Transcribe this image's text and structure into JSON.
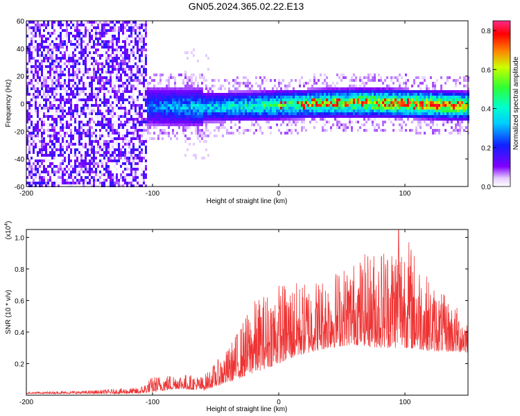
{
  "title": "GN05.2024.365.02.22.E13",
  "colors": {
    "snr_line": "#ee3333",
    "spectrogram_low": "#8000ff",
    "spectrogram_high": "#ff0000"
  },
  "chart_data": [
    {
      "type": "heatmap",
      "xlabel": "Height of straight line (km)",
      "ylabel": "Frequency (Hz)",
      "xlim": [
        -200,
        150
      ],
      "ylim": [
        -60,
        60
      ],
      "xticks": [
        -200,
        -100,
        0,
        100
      ],
      "yticks": [
        -60,
        -40,
        -20,
        0,
        20,
        40,
        60
      ],
      "colorbar": {
        "label": "Normalized spectral amplitude",
        "range": [
          0,
          0.85
        ],
        "ticks": [
          0.0,
          0.2,
          0.4,
          0.6,
          0.8
        ]
      },
      "description_points": {
        "noise_region_x": [
          -200,
          -105
        ],
        "signal_center_y": 0,
        "signal_band_halfwidth_hz": 12
      }
    },
    {
      "type": "line",
      "xlabel": "Height of straight line (km)",
      "ylabel": "SNR (10 * v/v)",
      "y_multiplier": "(x10",
      "y_multiplier_exp": "4",
      "y_multiplier_close": ")",
      "xlim": [
        -200,
        150
      ],
      "ylim": [
        0,
        1.05
      ],
      "xticks": [
        -200,
        -100,
        0,
        100
      ],
      "yticks": [
        0.2,
        0.4,
        0.6,
        0.8,
        1.0
      ],
      "envelope": {
        "x": [
          -200,
          -150,
          -110,
          -100,
          -80,
          -60,
          -40,
          -20,
          0,
          20,
          40,
          60,
          80,
          100,
          120,
          150
        ],
        "baseline": [
          0.01,
          0.01,
          0.01,
          0.02,
          0.04,
          0.03,
          0.08,
          0.14,
          0.2,
          0.26,
          0.3,
          0.32,
          0.3,
          0.3,
          0.28,
          0.27
        ],
        "peak": [
          0.02,
          0.03,
          0.05,
          0.12,
          0.14,
          0.12,
          0.3,
          0.6,
          0.72,
          0.72,
          0.78,
          0.86,
          0.95,
          1.05,
          0.72,
          0.5
        ]
      }
    }
  ]
}
